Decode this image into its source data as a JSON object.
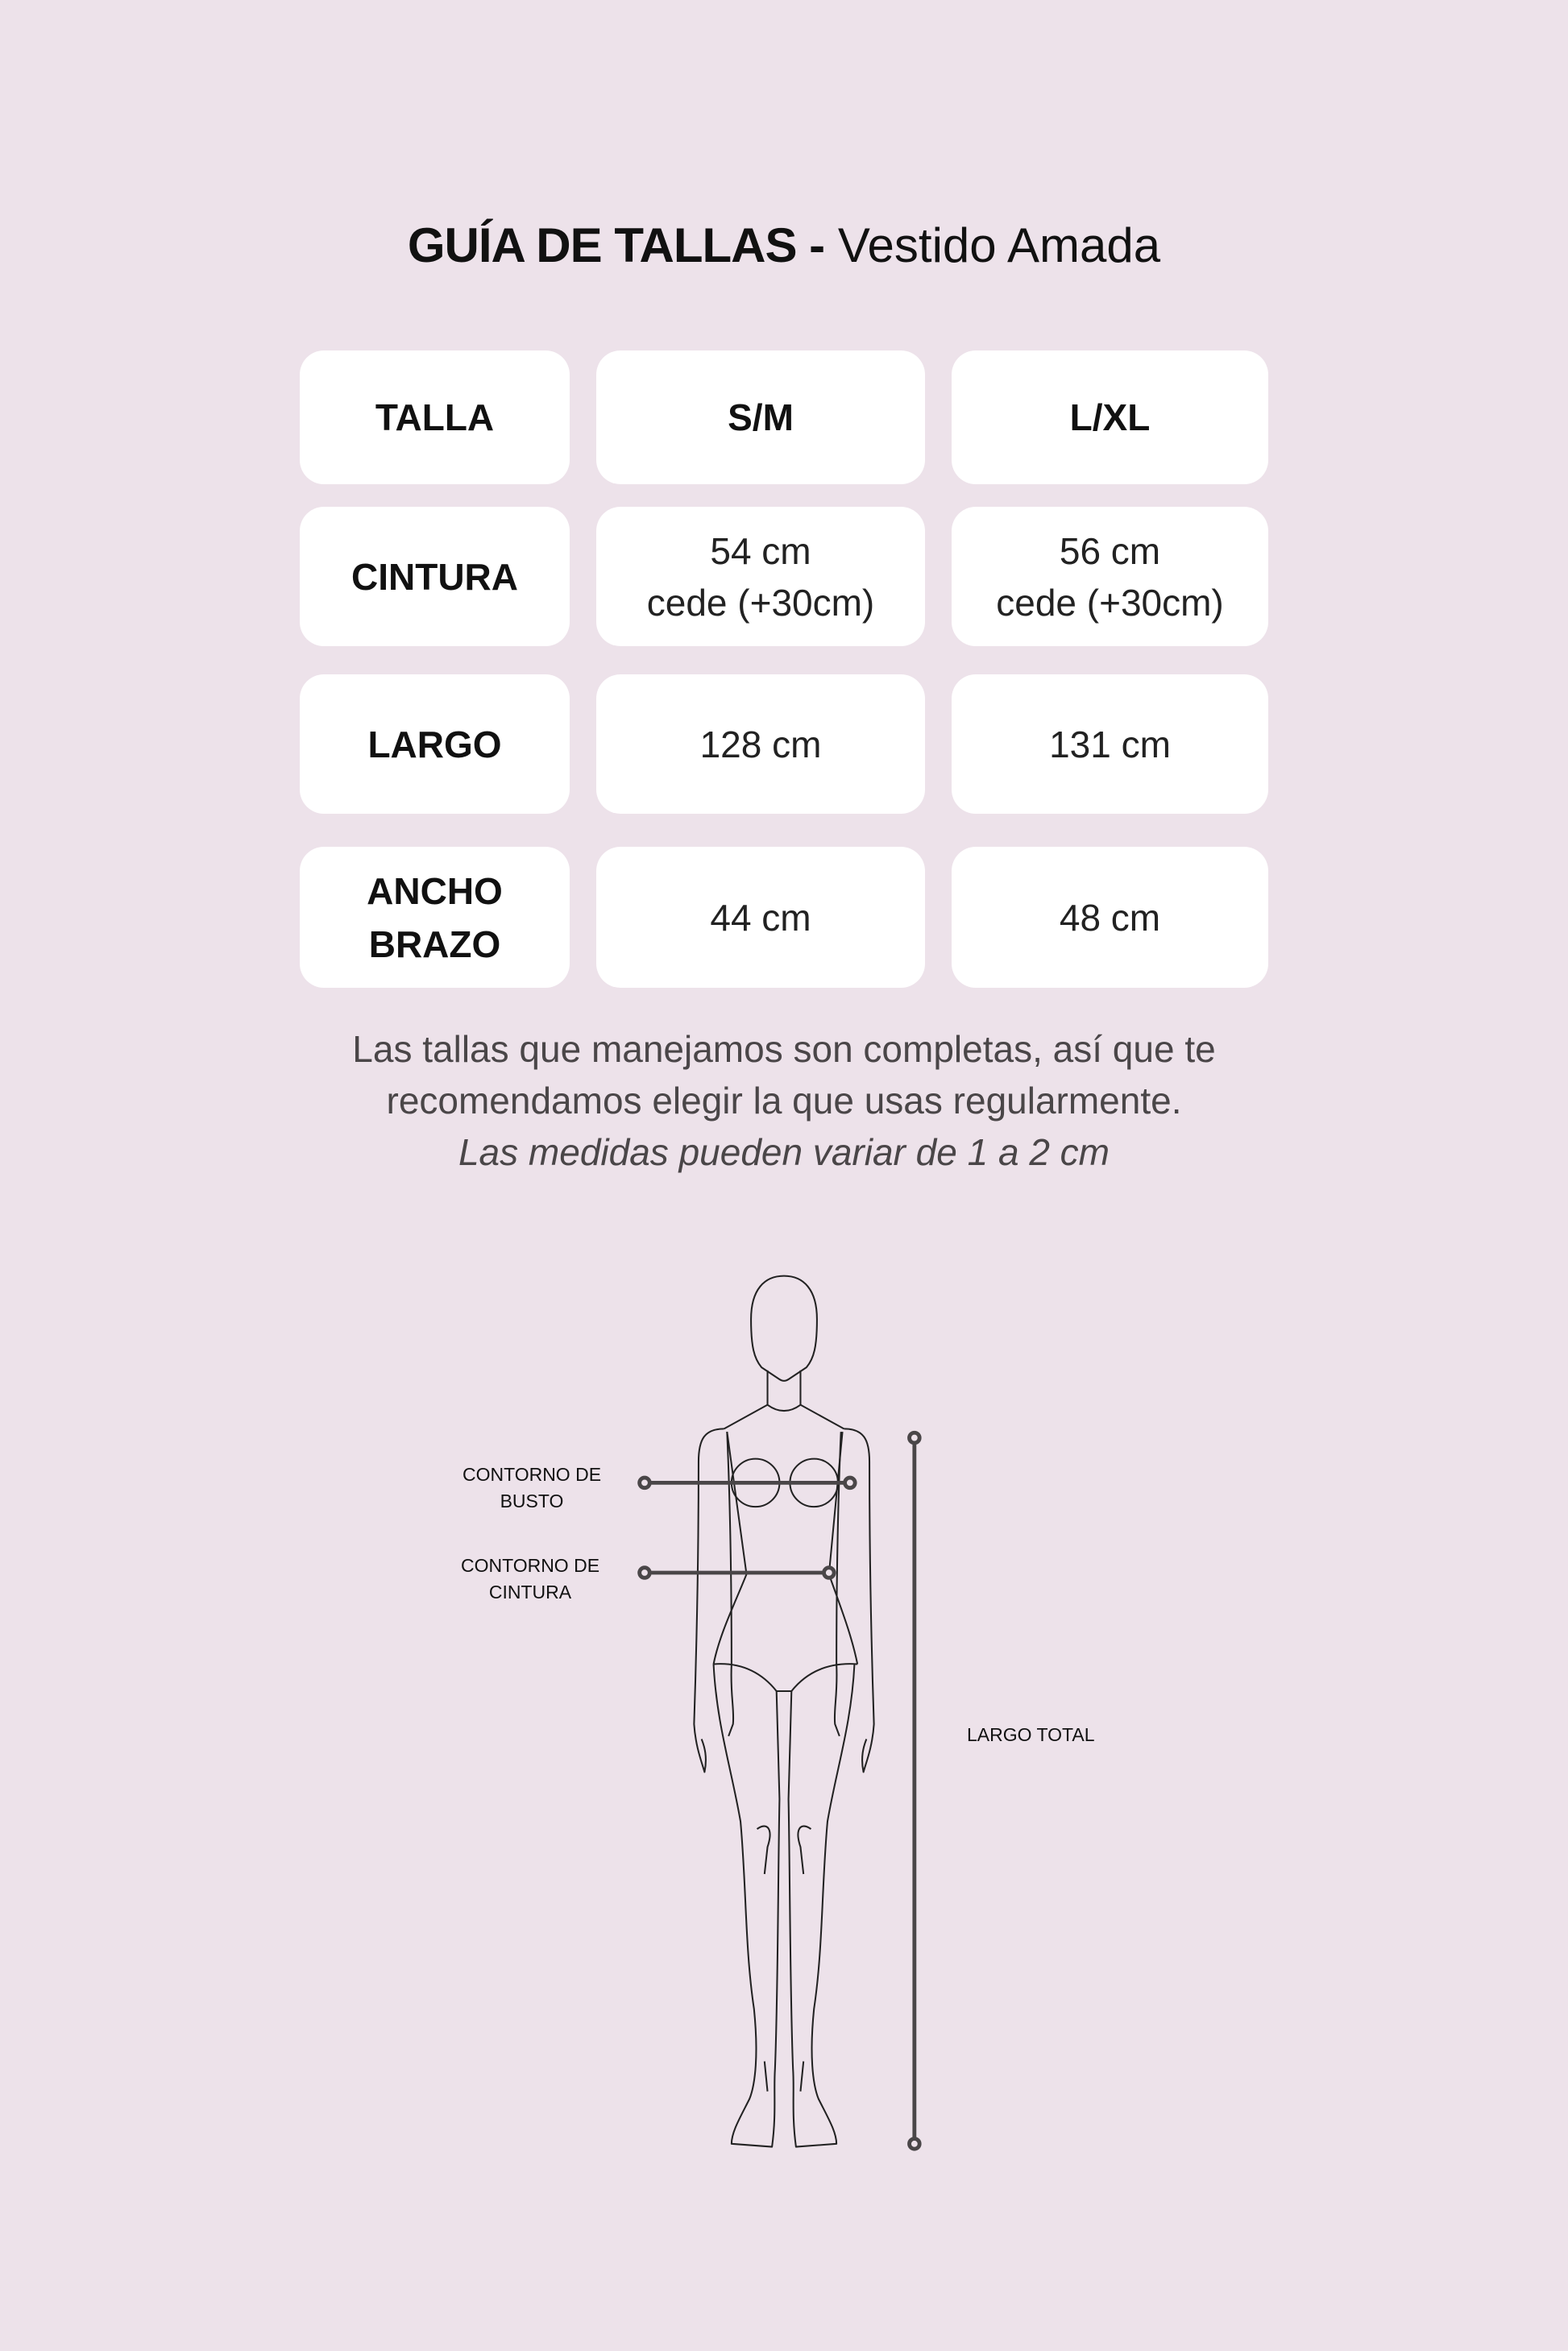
{
  "title": {
    "bold": "GUÍA DE TALLAS -",
    "product": "Vestido Amada"
  },
  "table": {
    "headers": [
      "TALLA",
      "S/M",
      "L/XL"
    ],
    "rows": [
      {
        "label": "CINTURA",
        "sm": [
          "54 cm",
          "cede (+30cm)"
        ],
        "lxl": [
          "56 cm",
          "cede (+30cm)"
        ]
      },
      {
        "label": "LARGO",
        "sm": [
          "128 cm"
        ],
        "lxl": [
          "131 cm"
        ]
      },
      {
        "label": [
          "ANCHO",
          "BRAZO"
        ],
        "sm": [
          "44 cm"
        ],
        "lxl": [
          "48 cm"
        ]
      }
    ]
  },
  "note": {
    "line1": "Las tallas que manejamos son completas, así que te",
    "line2": "recomendamos elegir la que usas regularmente.",
    "italic": "Las medidas pueden variar de 1 a 2 cm"
  },
  "diagram": {
    "bust_label": [
      "CONTORNO DE",
      "BUSTO"
    ],
    "waist_label": [
      "CONTORNO DE",
      "CINTURA"
    ],
    "length_label": "LARGO TOTAL",
    "line_color": "#4a4648",
    "background": "#ede2ea"
  }
}
